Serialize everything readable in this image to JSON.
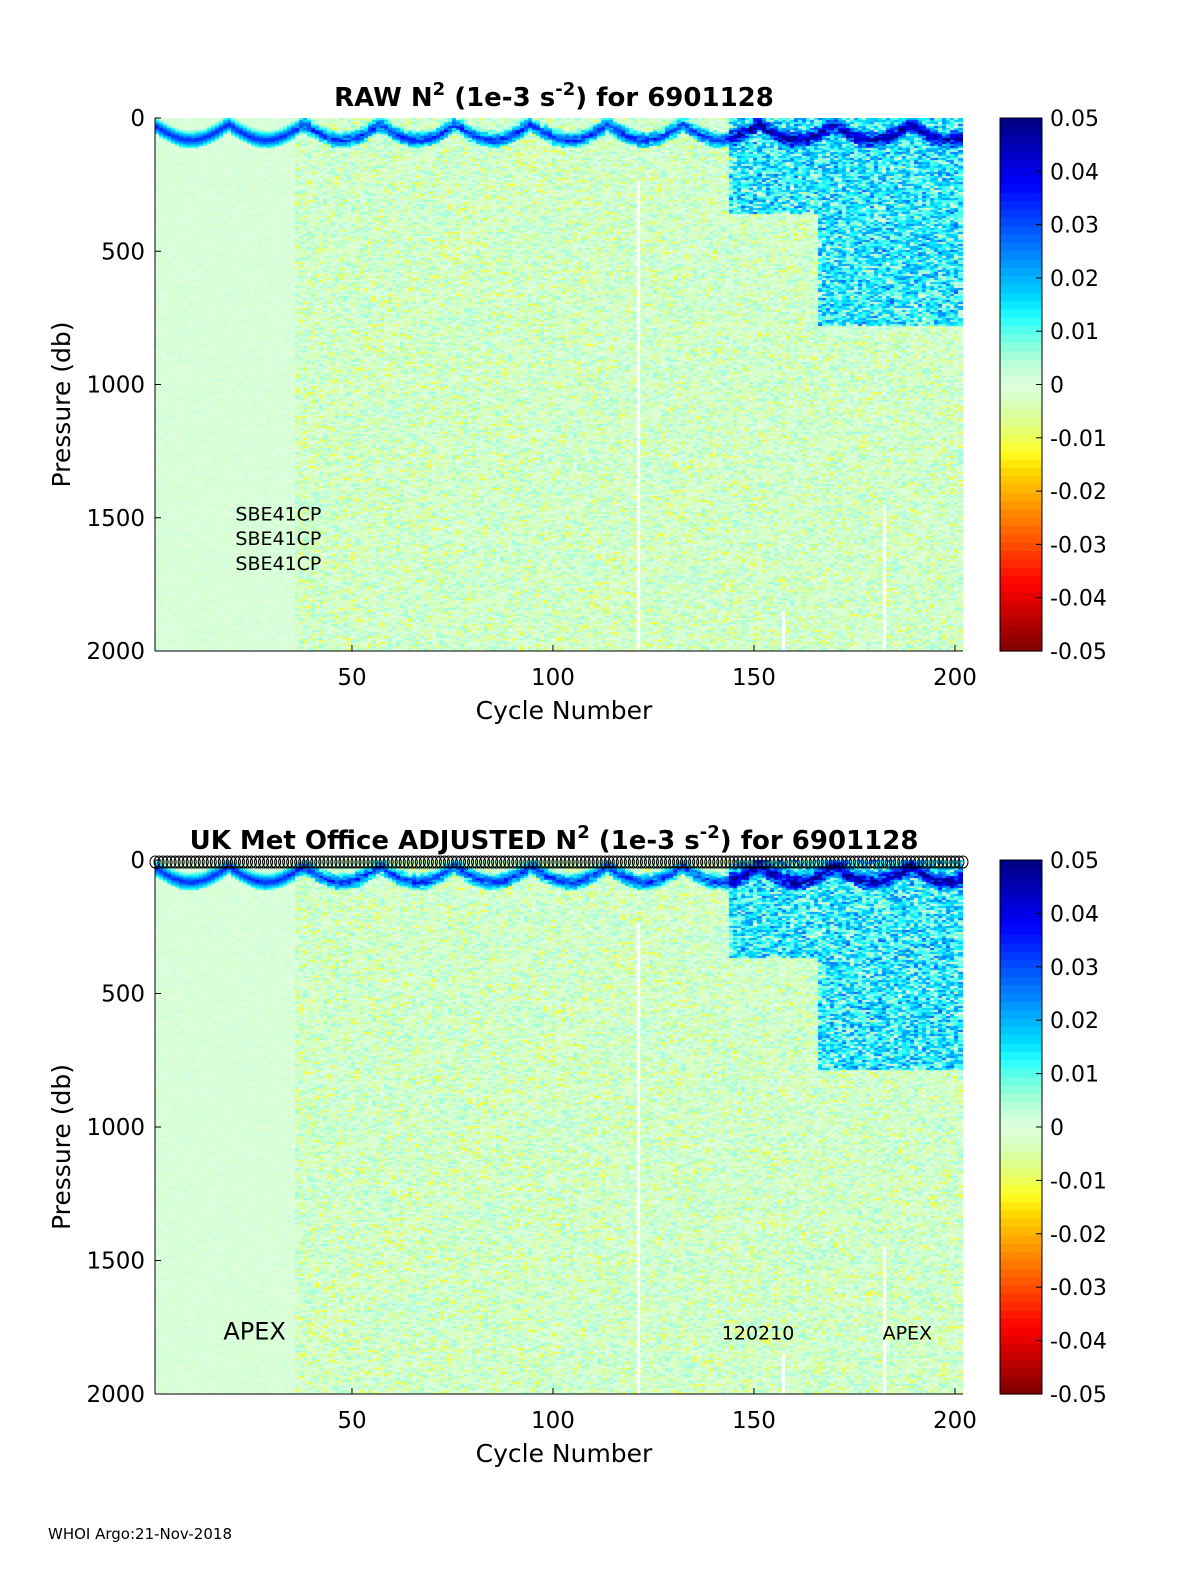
{
  "footer": "WHOI Argo:21-Nov-2018",
  "chart_data": [
    {
      "type": "heatmap",
      "title_parts": [
        "RAW N",
        "2",
        " (1e-3 s",
        "-2",
        ") for 6901128"
      ],
      "xlabel": "Cycle Number",
      "ylabel": "Pressure (db)",
      "xlim": [
        1,
        202
      ],
      "ylim": [
        0,
        2000
      ],
      "y_reversed": true,
      "xticks": [
        50,
        100,
        150,
        200
      ],
      "yticks": [
        0,
        500,
        1000,
        1500,
        2000
      ],
      "colorbar": {
        "ticks": [
          0.05,
          0.04,
          0.03,
          0.02,
          0.01,
          0,
          -0.01,
          -0.02,
          -0.03,
          -0.04,
          -0.05
        ],
        "tick_labels": [
          "0.05",
          "0.04",
          "0.03",
          "0.02",
          "0.01",
          "0",
          "-0.01",
          "-0.02",
          "-0.03",
          "-0.04",
          "-0.05"
        ],
        "colormap": "jet-centered",
        "clim": [
          -0.05,
          0.05
        ]
      },
      "annotations": [
        {
          "text": "SBE41CP",
          "x": 21,
          "y": 1510
        },
        {
          "text": "SBE41CP",
          "x": 21,
          "y": 1603
        },
        {
          "text": "SBE41CP",
          "x": 21,
          "y": 1696
        }
      ],
      "markers_at_surface": false
    },
    {
      "type": "heatmap",
      "title_parts": [
        "UK Met Office  ADJUSTED N",
        "2",
        " (1e-3 s",
        "-2",
        ") for 6901128"
      ],
      "xlabel": "Cycle Number",
      "ylabel": "Pressure (db)",
      "xlim": [
        1,
        202
      ],
      "ylim": [
        0,
        2000
      ],
      "y_reversed": true,
      "xticks": [
        50,
        100,
        150,
        200
      ],
      "yticks": [
        0,
        500,
        1000,
        1500,
        2000
      ],
      "colorbar": {
        "ticks": [
          0.05,
          0.04,
          0.03,
          0.02,
          0.01,
          0,
          -0.01,
          -0.02,
          -0.03,
          -0.04,
          -0.05
        ],
        "tick_labels": [
          "0.05",
          "0.04",
          "0.03",
          "0.02",
          "0.01",
          "0",
          "-0.01",
          "-0.02",
          "-0.03",
          "-0.04",
          "-0.05"
        ],
        "colormap": "jet-centered",
        "clim": [
          -0.05,
          0.05
        ]
      },
      "annotations": [
        {
          "text": "APEX",
          "x": 18,
          "y": 1795
        },
        {
          "text": "120210",
          "x": 142,
          "y": 1795
        },
        {
          "text": "APEX",
          "x": 182,
          "y": 1795
        }
      ],
      "markers_at_surface": true
    }
  ]
}
